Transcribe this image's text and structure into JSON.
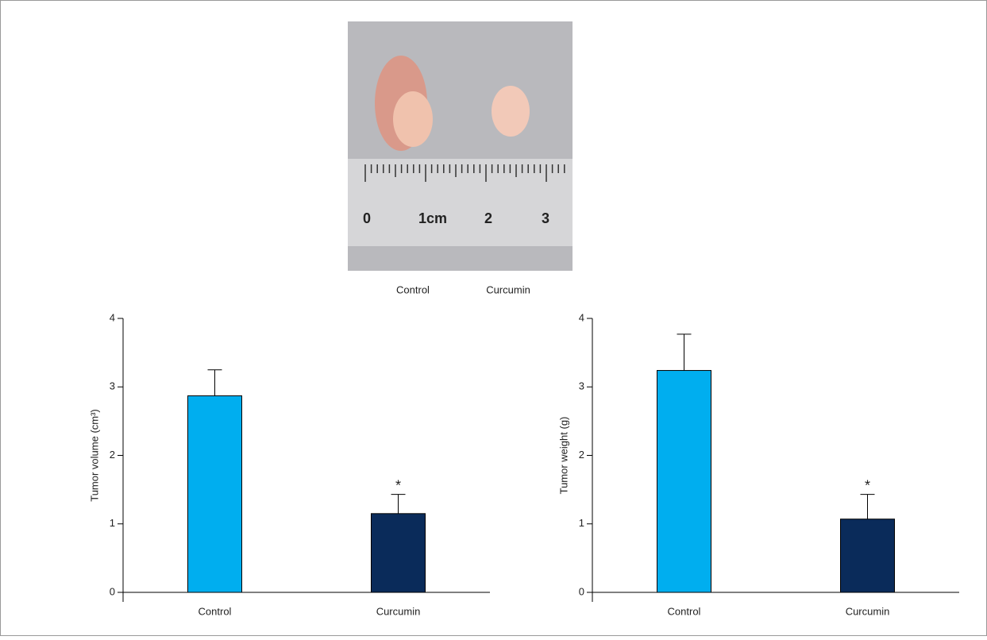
{
  "photo": {
    "captions": [
      "Control",
      "Curcumin"
    ],
    "ruler_labels": [
      "0",
      "1cm",
      "2",
      "3"
    ]
  },
  "chart_data": [
    {
      "type": "bar",
      "y_label": "Tumor volume (cm³)",
      "categories": [
        "Control",
        "Curcumin"
      ],
      "values": [
        2.87,
        1.15
      ],
      "errors": [
        0.38,
        0.28
      ],
      "colors": [
        "#00aeef",
        "#0a2b5a"
      ],
      "significance_labels": [
        null,
        "*"
      ],
      "ylim": [
        0,
        4
      ],
      "yticks": [
        0,
        1,
        2,
        3,
        4
      ]
    },
    {
      "type": "bar",
      "y_label": "Tumor weight (g)",
      "categories": [
        "Control",
        "Curcumin"
      ],
      "values": [
        3.24,
        1.07
      ],
      "errors": [
        0.53,
        0.36
      ],
      "colors": [
        "#00aeef",
        "#0a2b5a"
      ],
      "significance_labels": [
        null,
        "*"
      ],
      "ylim": [
        0,
        4
      ],
      "yticks": [
        0,
        1,
        2,
        3,
        4
      ]
    }
  ]
}
